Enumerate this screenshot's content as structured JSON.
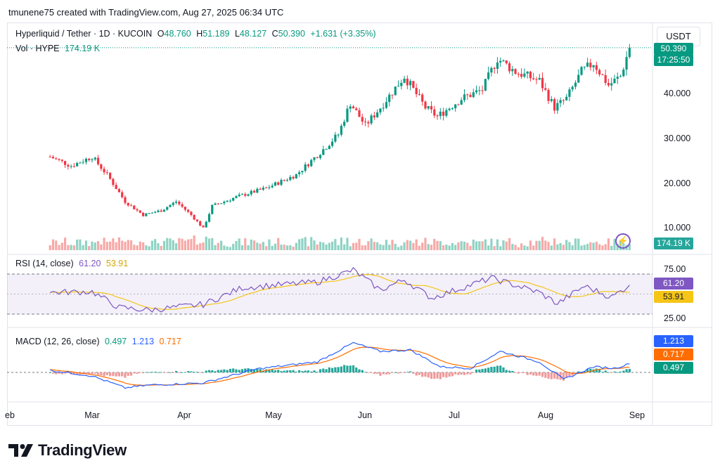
{
  "header": "tmunene75 created with TradingView.com, Aug 27, 2025 06:34 UTC",
  "symbol": {
    "name": "Hyperliquid / Tether · 1D · KUCOIN",
    "o_label": "O",
    "open": "48.760",
    "h_label": "H",
    "high": "51.189",
    "l_label": "L",
    "low": "48.127",
    "c_label": "C",
    "close": "50.390",
    "change": "+1.631 (+3.35%)"
  },
  "volume": {
    "label": "Vol · HYPE",
    "value": "174.19 K",
    "badge": "174.19 K"
  },
  "currency": "USDT",
  "price_badge": {
    "price": "50.390",
    "countdown": "17:25:50"
  },
  "price_ticks": [
    "40.000",
    "30.000",
    "20.000",
    "10.000"
  ],
  "rsi": {
    "label": "RSI (14, close)",
    "value": "61.20",
    "ma": "53.91",
    "ticks": [
      "75.00",
      "25.00"
    ]
  },
  "macd": {
    "label": "MACD (12, 26, close)",
    "hist": "0.497",
    "macd": "1.213",
    "signal": "0.717"
  },
  "x_ticks": [
    "eb",
    "Mar",
    "Apr",
    "May",
    "Jun",
    "Jul",
    "Aug",
    "Sep"
  ],
  "brand": "TradingView",
  "colors": {
    "up": "#089981",
    "down": "#f23645",
    "rsi": "#7e57c2",
    "rsi_ma": "#f5c518",
    "macd": "#2962ff",
    "signal": "#ff6d00"
  },
  "chart_data": {
    "type": "candlestick",
    "title": "Hyperliquid / Tether · 1D · KUCOIN",
    "price_range": [
      4,
      53
    ],
    "anchors": [
      [
        "2025-02-15",
        26
      ],
      [
        "2025-02-22",
        24
      ],
      [
        "2025-03-01",
        26
      ],
      [
        "2025-03-06",
        22
      ],
      [
        "2025-03-12",
        16
      ],
      [
        "2025-03-18",
        13
      ],
      [
        "2025-03-24",
        14
      ],
      [
        "2025-03-29",
        16
      ],
      [
        "2025-04-03",
        13
      ],
      [
        "2025-04-07",
        10
      ],
      [
        "2025-04-10",
        15
      ],
      [
        "2025-04-18",
        17
      ],
      [
        "2025-04-28",
        19
      ],
      [
        "2025-05-08",
        22
      ],
      [
        "2025-05-16",
        27
      ],
      [
        "2025-05-22",
        31
      ],
      [
        "2025-05-26",
        38
      ],
      [
        "2025-05-31",
        33
      ],
      [
        "2025-06-05",
        37
      ],
      [
        "2025-06-13",
        44
      ],
      [
        "2025-06-20",
        37
      ],
      [
        "2025-06-24",
        35
      ],
      [
        "2025-07-02",
        39
      ],
      [
        "2025-07-09",
        41
      ],
      [
        "2025-07-14",
        48
      ],
      [
        "2025-07-20",
        45
      ],
      [
        "2025-07-28",
        43
      ],
      [
        "2025-08-02",
        37
      ],
      [
        "2025-08-06",
        39
      ],
      [
        "2025-08-11",
        45
      ],
      [
        "2025-08-15",
        47
      ],
      [
        "2025-08-20",
        42
      ],
      [
        "2025-08-24",
        44
      ],
      [
        "2025-08-27",
        50.39
      ]
    ],
    "rsi_anchors": [
      [
        "2025-02-15",
        52
      ],
      [
        "2025-03-01",
        53
      ],
      [
        "2025-03-10",
        33
      ],
      [
        "2025-03-20",
        30
      ],
      [
        "2025-04-07",
        37
      ],
      [
        "2025-04-20",
        58
      ],
      [
        "2025-05-15",
        65
      ],
      [
        "2025-05-27",
        80
      ],
      [
        "2025-06-05",
        55
      ],
      [
        "2025-06-13",
        68
      ],
      [
        "2025-06-22",
        45
      ],
      [
        "2025-07-12",
        70
      ],
      [
        "2025-07-28",
        52
      ],
      [
        "2025-08-03",
        38
      ],
      [
        "2025-08-12",
        60
      ],
      [
        "2025-08-21",
        46
      ],
      [
        "2025-08-27",
        61.2
      ]
    ],
    "macd_anchors": [
      [
        "2025-02-15",
        0.3
      ],
      [
        "2025-03-01",
        -0.5
      ],
      [
        "2025-03-12",
        -2.2
      ],
      [
        "2025-03-20",
        -1.8
      ],
      [
        "2025-04-07",
        -1.5
      ],
      [
        "2025-04-25",
        0.5
      ],
      [
        "2025-05-15",
        1.5
      ],
      [
        "2025-05-27",
        4.2
      ],
      [
        "2025-06-05",
        3.0
      ],
      [
        "2025-06-15",
        3.2
      ],
      [
        "2025-06-25",
        0.8
      ],
      [
        "2025-07-05",
        0.6
      ],
      [
        "2025-07-15",
        3.0
      ],
      [
        "2025-07-28",
        1.5
      ],
      [
        "2025-08-05",
        -1.0
      ],
      [
        "2025-08-15",
        0.8
      ],
      [
        "2025-08-22",
        0.6
      ],
      [
        "2025-08-27",
        1.213
      ]
    ]
  }
}
